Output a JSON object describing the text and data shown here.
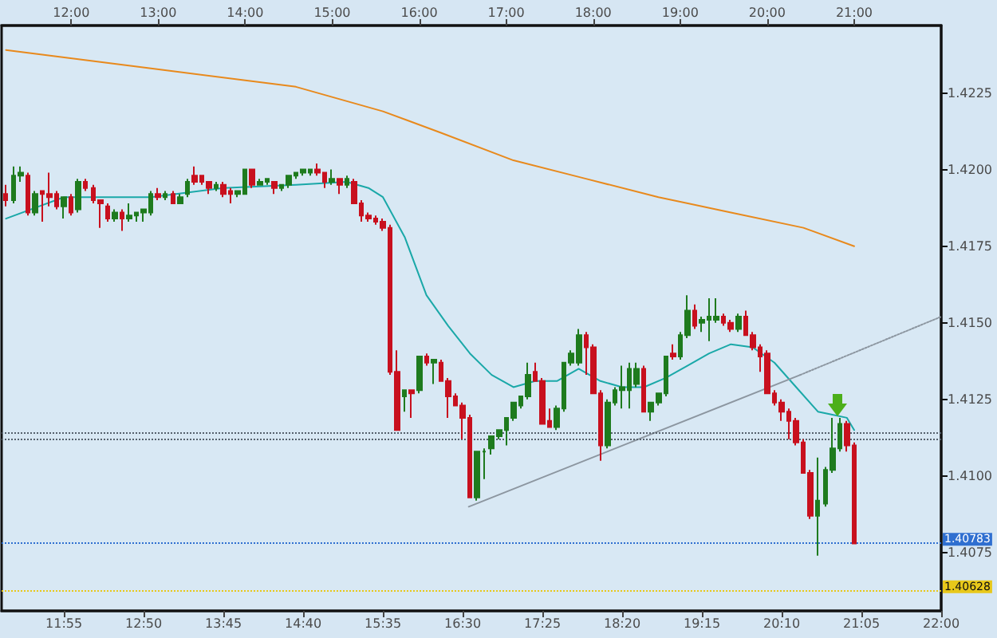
{
  "chart_data": {
    "type": "candlestick",
    "x": [
      11.25,
      11.3333,
      11.4167,
      11.5,
      11.5833,
      11.6667,
      11.75,
      11.8333,
      11.9167,
      12,
      12.0833,
      12.1667,
      12.25,
      12.3333,
      12.4167,
      12.5,
      12.5833,
      12.6667,
      12.75,
      12.8333,
      12.9167,
      13,
      13.0833,
      13.1667,
      13.25,
      13.3333,
      13.4167,
      13.5,
      13.5833,
      13.6667,
      13.75,
      13.8333,
      13.9167,
      14,
      14.0833,
      14.1667,
      14.25,
      14.3333,
      14.4167,
      14.5,
      14.5833,
      14.6667,
      14.75,
      14.8333,
      14.9167,
      15,
      15.0833,
      15.1667,
      15.25,
      15.3333,
      15.4167,
      15.5,
      15.5833,
      15.6667,
      15.75,
      15.8333,
      15.9167,
      16,
      16.0833,
      16.1667,
      16.25,
      16.3333,
      16.4167,
      16.5,
      16.5833,
      16.6667,
      16.75,
      16.8333,
      16.9167,
      17,
      17.0833,
      17.1667,
      17.25,
      17.3333,
      17.4167,
      17.5,
      17.5833,
      17.6667,
      17.75,
      17.8333,
      17.9167,
      18,
      18.0833,
      18.1667,
      18.25,
      18.3333,
      18.4167,
      18.5,
      18.5833,
      18.6667,
      18.75,
      18.8333,
      18.9167,
      19,
      19.0833,
      19.1667,
      19.25,
      19.3333,
      19.4167,
      19.5,
      19.5833,
      19.6667,
      19.75,
      19.8333,
      19.9167,
      20,
      20.0833,
      20.1667,
      20.25,
      20.3333,
      20.4167,
      20.5,
      20.5833,
      20.6667,
      20.75,
      20.8333,
      20.9167,
      21
    ],
    "ohlc": [
      [
        1.4192,
        1.4195,
        1.4188,
        1.419
      ],
      [
        1.419,
        1.4201,
        1.4189,
        1.4198
      ],
      [
        1.4198,
        1.4201,
        1.4196,
        1.4199
      ],
      [
        1.4198,
        1.4199,
        1.4185,
        1.4186
      ],
      [
        1.4186,
        1.4193,
        1.4185,
        1.4192
      ],
      [
        1.4193,
        1.4193,
        1.4183,
        1.4192
      ],
      [
        1.4192,
        1.4199,
        1.4188,
        1.4191
      ],
      [
        1.4192,
        1.4193,
        1.4187,
        1.4188
      ],
      [
        1.4188,
        1.4191,
        1.4184,
        1.4191
      ],
      [
        1.4191,
        1.4192,
        1.4185,
        1.4186
      ],
      [
        1.4187,
        1.4197,
        1.4186,
        1.4196
      ],
      [
        1.4196,
        1.4197,
        1.4193,
        1.4194
      ],
      [
        1.4194,
        1.4195,
        1.4189,
        1.419
      ],
      [
        1.419,
        1.419,
        1.4181,
        1.4189
      ],
      [
        1.4188,
        1.4189,
        1.4183,
        1.4184
      ],
      [
        1.4184,
        1.4187,
        1.4183,
        1.4186
      ],
      [
        1.4186,
        1.4187,
        1.418,
        1.4184
      ],
      [
        1.4184,
        1.4189,
        1.4183,
        1.4185
      ],
      [
        1.4185,
        1.4186,
        1.4183,
        1.4186
      ],
      [
        1.4186,
        1.4187,
        1.4183,
        1.4187
      ],
      [
        1.4186,
        1.4193,
        1.4185,
        1.4192
      ],
      [
        1.4192,
        1.4194,
        1.419,
        1.4191
      ],
      [
        1.4191,
        1.4193,
        1.419,
        1.4192
      ],
      [
        1.4192,
        1.4193,
        1.4189,
        1.4189
      ],
      [
        1.4189,
        1.4192,
        1.4189,
        1.4191
      ],
      [
        1.4192,
        1.4197,
        1.4191,
        1.4196
      ],
      [
        1.4198,
        1.4201,
        1.4195,
        1.4196
      ],
      [
        1.4198,
        1.4198,
        1.4195,
        1.4196
      ],
      [
        1.4196,
        1.4196,
        1.4192,
        1.4194
      ],
      [
        1.4194,
        1.4196,
        1.4193,
        1.4195
      ],
      [
        1.4195,
        1.4196,
        1.4191,
        1.4192
      ],
      [
        1.4193,
        1.4194,
        1.4189,
        1.4192
      ],
      [
        1.4192,
        1.4193,
        1.4191,
        1.4193
      ],
      [
        1.4192,
        1.42,
        1.4192,
        1.42
      ],
      [
        1.42,
        1.42,
        1.4194,
        1.4195
      ],
      [
        1.4195,
        1.4197,
        1.4195,
        1.4196
      ],
      [
        1.4196,
        1.4197,
        1.4195,
        1.4197
      ],
      [
        1.4196,
        1.4196,
        1.4192,
        1.4194
      ],
      [
        1.4194,
        1.4195,
        1.4193,
        1.4195
      ],
      [
        1.4195,
        1.4198,
        1.4194,
        1.4198
      ],
      [
        1.4198,
        1.4199,
        1.4197,
        1.4199
      ],
      [
        1.4199,
        1.42,
        1.4198,
        1.42
      ],
      [
        1.4199,
        1.42,
        1.4198,
        1.42
      ],
      [
        1.42,
        1.4202,
        1.4198,
        1.4199
      ],
      [
        1.4199,
        1.4199,
        1.4194,
        1.4196
      ],
      [
        1.4196,
        1.42,
        1.4195,
        1.4197
      ],
      [
        1.4197,
        1.4197,
        1.4192,
        1.4195
      ],
      [
        1.4195,
        1.4198,
        1.4194,
        1.4197
      ],
      [
        1.4196,
        1.4197,
        1.4189,
        1.4189
      ],
      [
        1.4189,
        1.419,
        1.4183,
        1.4185
      ],
      [
        1.4185,
        1.4186,
        1.4183,
        1.4184
      ],
      [
        1.4184,
        1.4185,
        1.4182,
        1.4183
      ],
      [
        1.4183,
        1.4184,
        1.418,
        1.4181
      ],
      [
        1.4181,
        1.4182,
        1.4133,
        1.4134
      ],
      [
        1.4134,
        1.4141,
        1.4115,
        1.4115
      ],
      [
        1.4126,
        1.4128,
        1.4121,
        1.4128
      ],
      [
        1.4128,
        1.4128,
        1.4119,
        1.4127
      ],
      [
        1.4128,
        1.4139,
        1.4127,
        1.4139
      ],
      [
        1.4139,
        1.414,
        1.4136,
        1.4137
      ],
      [
        1.4137,
        1.4138,
        1.413,
        1.4138
      ],
      [
        1.4137,
        1.4138,
        1.4131,
        1.4131
      ],
      [
        1.4131,
        1.4132,
        1.4119,
        1.4126
      ],
      [
        1.4126,
        1.4127,
        1.4123,
        1.4123
      ],
      [
        1.4123,
        1.4124,
        1.4112,
        1.4119
      ],
      [
        1.4119,
        1.412,
        1.4093,
        1.4093
      ],
      [
        1.4093,
        1.4108,
        1.4092,
        1.4108
      ],
      [
        1.4108,
        1.4109,
        1.4099,
        1.4108
      ],
      [
        1.4109,
        1.4113,
        1.4107,
        1.4113
      ],
      [
        1.4113,
        1.4115,
        1.4112,
        1.4115
      ],
      [
        1.4115,
        1.4119,
        1.411,
        1.4119
      ],
      [
        1.4119,
        1.4124,
        1.4118,
        1.4124
      ],
      [
        1.4123,
        1.4126,
        1.4122,
        1.4126
      ],
      [
        1.4126,
        1.4137,
        1.4125,
        1.4133
      ],
      [
        1.4134,
        1.4137,
        1.4131,
        1.4131
      ],
      [
        1.4131,
        1.4132,
        1.4117,
        1.4117
      ],
      [
        1.4118,
        1.4122,
        1.4116,
        1.4116
      ],
      [
        1.4116,
        1.4123,
        1.4115,
        1.4122
      ],
      [
        1.4122,
        1.4137,
        1.4121,
        1.4137
      ],
      [
        1.4137,
        1.4141,
        1.4136,
        1.414
      ],
      [
        1.4137,
        1.4148,
        1.4136,
        1.4146
      ],
      [
        1.4146,
        1.4147,
        1.4133,
        1.4142
      ],
      [
        1.4142,
        1.4143,
        1.4127,
        1.4127
      ],
      [
        1.4127,
        1.4128,
        1.4105,
        1.411
      ],
      [
        1.411,
        1.4125,
        1.4109,
        1.4124
      ],
      [
        1.4124,
        1.4129,
        1.4123,
        1.4128
      ],
      [
        1.4128,
        1.4136,
        1.4122,
        1.4129
      ],
      [
        1.4128,
        1.4137,
        1.4122,
        1.4135
      ],
      [
        1.413,
        1.4137,
        1.4129,
        1.4135
      ],
      [
        1.4135,
        1.4136,
        1.4121,
        1.4121
      ],
      [
        1.4121,
        1.4124,
        1.4118,
        1.4124
      ],
      [
        1.4124,
        1.4127,
        1.4123,
        1.4127
      ],
      [
        1.4127,
        1.4139,
        1.4126,
        1.4139
      ],
      [
        1.414,
        1.4143,
        1.4138,
        1.4139
      ],
      [
        1.4139,
        1.4147,
        1.4138,
        1.4146
      ],
      [
        1.4146,
        1.4159,
        1.4145,
        1.4154
      ],
      [
        1.4154,
        1.4156,
        1.4148,
        1.4149
      ],
      [
        1.415,
        1.4152,
        1.4147,
        1.4151
      ],
      [
        1.4151,
        1.4158,
        1.4144,
        1.4152
      ],
      [
        1.4151,
        1.4158,
        1.415,
        1.4152
      ],
      [
        1.4152,
        1.4153,
        1.4149,
        1.415
      ],
      [
        1.415,
        1.4151,
        1.4147,
        1.4148
      ],
      [
        1.4148,
        1.4153,
        1.4147,
        1.4152
      ],
      [
        1.4152,
        1.4154,
        1.4146,
        1.4146
      ],
      [
        1.4146,
        1.4147,
        1.4141,
        1.4142
      ],
      [
        1.4142,
        1.4143,
        1.4134,
        1.4139
      ],
      [
        1.414,
        1.4141,
        1.4127,
        1.4127
      ],
      [
        1.4127,
        1.4128,
        1.4123,
        1.4124
      ],
      [
        1.4124,
        1.4125,
        1.4118,
        1.4121
      ],
      [
        1.4121,
        1.4122,
        1.4112,
        1.4118
      ],
      [
        1.4118,
        1.4119,
        1.411,
        1.4111
      ],
      [
        1.4111,
        1.4112,
        1.4101,
        1.4101
      ],
      [
        1.4101,
        1.4102,
        1.4086,
        1.4087
      ],
      [
        1.4087,
        1.4106,
        1.4074,
        1.4092
      ],
      [
        1.4091,
        1.4103,
        1.409,
        1.4102
      ],
      [
        1.4102,
        1.4119,
        1.4101,
        1.4109
      ],
      [
        1.4109,
        1.4119,
        1.4108,
        1.4117
      ],
      [
        1.4117,
        1.4118,
        1.4108,
        1.411
      ],
      [
        1.411,
        1.4111,
        1.4078,
        1.4078
      ]
    ],
    "colors": [
      "#c8101e",
      "#1e7b1e",
      "#1e7b1e",
      "#c8101e",
      "#1e7b1e",
      "#c8101e",
      "#c8101e",
      "#c8101e",
      "#1e7b1e",
      "#c8101e",
      "#1e7b1e",
      "#c8101e",
      "#c8101e",
      "#c8101e",
      "#c8101e",
      "#1e7b1e",
      "#c8101e",
      "#1e7b1e",
      "#1e7b1e",
      "#1e7b1e",
      "#1e7b1e",
      "#c8101e",
      "#1e7b1e",
      "#c8101e",
      "#1e7b1e",
      "#1e7b1e",
      "#c8101e",
      "#c8101e",
      "#c8101e",
      "#1e7b1e",
      "#c8101e",
      "#c8101e",
      "#1e7b1e",
      "#1e7b1e",
      "#c8101e",
      "#1e7b1e",
      "#1e7b1e",
      "#c8101e",
      "#1e7b1e",
      "#1e7b1e",
      "#1e7b1e",
      "#1e7b1e",
      "#1e7b1e",
      "#c8101e",
      "#c8101e",
      "#1e7b1e",
      "#c8101e",
      "#1e7b1e",
      "#c8101e",
      "#c8101e",
      "#c8101e",
      "#c8101e",
      "#c8101e",
      "#c8101e",
      "#c8101e",
      "#1e7b1e",
      "#c8101e",
      "#1e7b1e",
      "#c8101e",
      "#1e7b1e",
      "#c8101e",
      "#c8101e",
      "#c8101e",
      "#c8101e",
      "#c8101e",
      "#1e7b1e",
      "#1e7b1e",
      "#1e7b1e",
      "#1e7b1e",
      "#1e7b1e",
      "#1e7b1e",
      "#1e7b1e",
      "#1e7b1e",
      "#c8101e",
      "#c8101e",
      "#c8101e",
      "#1e7b1e",
      "#1e7b1e",
      "#1e7b1e",
      "#1e7b1e",
      "#c8101e",
      "#c8101e",
      "#c8101e",
      "#1e7b1e",
      "#1e7b1e",
      "#1e7b1e",
      "#1e7b1e",
      "#1e7b1e",
      "#c8101e",
      "#1e7b1e",
      "#1e7b1e",
      "#1e7b1e",
      "#c8101e",
      "#1e7b1e",
      "#1e7b1e",
      "#c8101e",
      "#1e7b1e",
      "#1e7b1e",
      "#1e7b1e",
      "#c8101e",
      "#c8101e",
      "#1e7b1e",
      "#c8101e",
      "#c8101e",
      "#c8101e",
      "#c8101e",
      "#c8101e",
      "#c8101e",
      "#c8101e",
      "#c8101e",
      "#c8101e",
      "#c8101e",
      "#1e7b1e",
      "#1e7b1e",
      "#1e7b1e",
      "#1e7b1e",
      "#c8101e",
      "#c8101e"
    ],
    "series": [
      {
        "type": "line",
        "color": "#e8891c",
        "x": [
          11.25,
          12.9167,
          14.5833,
          15.5833,
          16.25,
          17.0833,
          17.9167,
          18.75,
          19.5833,
          20.4167,
          21
        ],
        "values": [
          1.4239,
          1.4233,
          1.4227,
          1.4219,
          1.4212,
          1.4203,
          1.4197,
          1.4191,
          1.4186,
          1.4181,
          1.4175
        ]
      },
      {
        "type": "line",
        "color": "#1aa8a8",
        "x": [
          11.25,
          11.9167,
          12.9167,
          13.75,
          14.5833,
          15.1667,
          15.4167,
          15.5833,
          15.8333,
          16.0833,
          16.3333,
          16.5833,
          16.8333,
          17.0833,
          17.3333,
          17.5833,
          17.8333,
          18.0833,
          18.3333,
          18.5833,
          18.8333,
          19.0833,
          19.3333,
          19.5833,
          19.8333,
          20.0833,
          20.3333,
          20.5833,
          20.75,
          20.9167,
          21
        ],
        "values": [
          1.4184,
          1.4191,
          1.4191,
          1.4194,
          1.4195,
          1.4196,
          1.4194,
          1.4191,
          1.4178,
          1.4159,
          1.4149,
          1.414,
          1.4133,
          1.4129,
          1.4131,
          1.4131,
          1.4135,
          1.4131,
          1.4129,
          1.4129,
          1.4132,
          1.4136,
          1.414,
          1.4143,
          1.4142,
          1.4137,
          1.4129,
          1.4121,
          1.412,
          1.4119,
          1.4115
        ]
      },
      {
        "type": "line",
        "color": "#8c96a0",
        "x": [
          16.57,
          20.38
        ],
        "values": [
          1.409,
          1.4133
        ]
      },
      {
        "type": "line",
        "color": "#8c96a0",
        "line_style": "dotted",
        "x": [
          20.38,
          22.0
        ],
        "values": [
          1.4133,
          1.4152
        ]
      }
    ],
    "marker": "none",
    "xlim": [
      11.2,
      22.0
    ],
    "xticks": [
      {
        "value": 11.9167,
        "label": "11:55"
      },
      {
        "value": 12.8333,
        "label": "12:50"
      },
      {
        "value": 13.75,
        "label": "13:45"
      },
      {
        "value": 14.6667,
        "label": "14:40"
      },
      {
        "value": 15.5833,
        "label": "15:35"
      },
      {
        "value": 16.5,
        "label": "16:30"
      },
      {
        "value": 17.4167,
        "label": "17:25"
      },
      {
        "value": 18.3333,
        "label": "18:20"
      },
      {
        "value": 19.25,
        "label": "19:15"
      },
      {
        "value": 20.1667,
        "label": "20:10"
      },
      {
        "value": 21.0833,
        "label": "21:05"
      },
      {
        "value": 22.0,
        "label": "22:00"
      }
    ],
    "x2lim": [
      11.2,
      22.0
    ],
    "x2ticks": [
      {
        "value": 12,
        "label": "12:00"
      },
      {
        "value": 13,
        "label": "13:00"
      },
      {
        "value": 14,
        "label": "14:00"
      },
      {
        "value": 15,
        "label": "15:00"
      },
      {
        "value": 16,
        "label": "16:00"
      },
      {
        "value": 17,
        "label": "17:00"
      },
      {
        "value": 18,
        "label": "18:00"
      },
      {
        "value": 19,
        "label": "19:00"
      },
      {
        "value": 20,
        "label": "20:00"
      },
      {
        "value": 21,
        "label": "21:00"
      }
    ],
    "ylim": [
      1.4056,
      1.4247
    ],
    "yticks": [
      1.4075,
      {
        "value": 1.41,
        "label": "1.4100"
      },
      1.4125,
      {
        "value": 1.415,
        "label": "1.4150"
      },
      1.4175,
      {
        "value": 1.42,
        "label": "1.4200"
      },
      1.4225
    ],
    "ref_lines": [
      {
        "axis": "y",
        "value": 1.4114,
        "color": "#55606c",
        "line_style": "dotted"
      },
      {
        "axis": "y",
        "value": 1.4112,
        "color": "#55606c",
        "line_style": "dotted"
      },
      {
        "axis": "y",
        "value": 1.40783,
        "label": "1.40783",
        "color": "#2f6fd0",
        "line_style": "dotted"
      },
      {
        "axis": "y",
        "value": 1.40628,
        "label": "1.40628",
        "color": "#e8c81a",
        "line_style": "dotted"
      }
    ]
  }
}
